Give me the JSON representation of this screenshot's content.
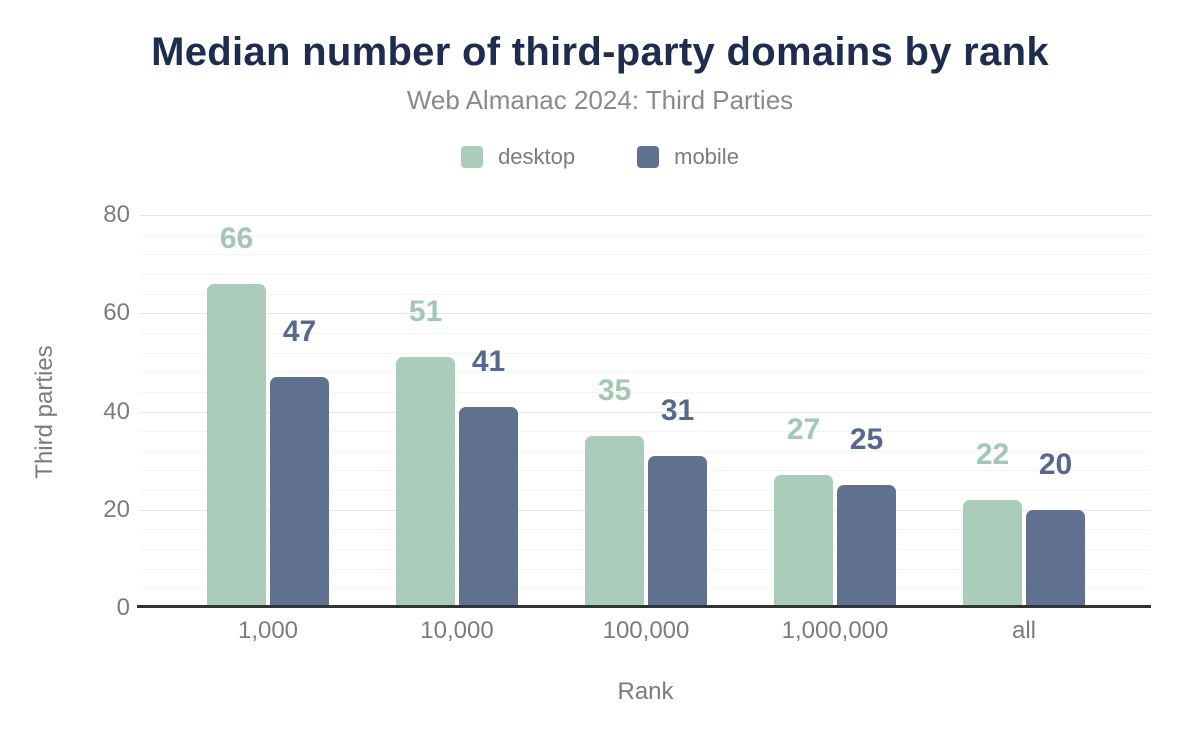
{
  "chart_data": {
    "type": "bar",
    "title": "Median number of third-party domains by rank",
    "subtitle": "Web Almanac 2024: Third Parties",
    "xlabel": "Rank",
    "ylabel": "Third parties",
    "categories": [
      "1,000",
      "10,000",
      "100,000",
      "1,000,000",
      "all"
    ],
    "series": [
      {
        "name": "desktop",
        "values": [
          66,
          51,
          35,
          27,
          22
        ],
        "color": "#abccba",
        "label_color": "#a2c7b4"
      },
      {
        "name": "mobile",
        "values": [
          47,
          41,
          31,
          25,
          20
        ],
        "color": "#60718f",
        "label_color": "#56688c"
      }
    ],
    "ylim": [
      0,
      80
    ],
    "yticks": [
      0,
      20,
      40,
      60,
      80
    ],
    "minor_gridline_step": 4,
    "grid": true,
    "legend_position": "top",
    "data_labels_shown": true
  },
  "colors": {
    "background": "#ffffff",
    "title": "#1e2d4d",
    "subtitle": "#8a8a8a",
    "axis_text": "#7c7c7c",
    "axis_line": "#333333",
    "gridline_major": "#e6e6e6",
    "gridline_minor": "#f4f4f4"
  }
}
